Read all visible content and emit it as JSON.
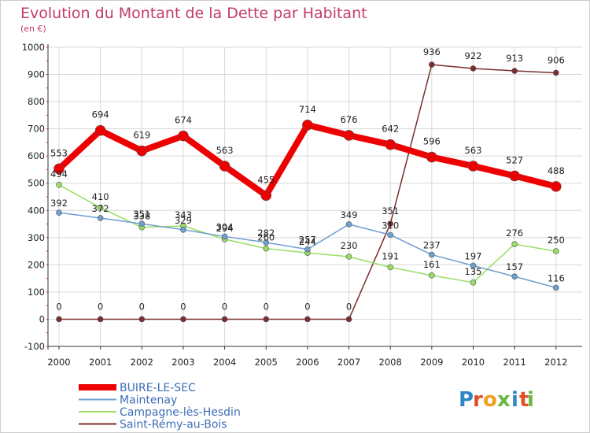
{
  "chart_data": {
    "type": "line",
    "title": "Evolution du Montant de la Dette par Habitant",
    "subtitle": "(en €)",
    "xlabel": "",
    "ylabel": "",
    "ylim": [
      -100,
      1000
    ],
    "yticks": [
      "-100",
      "0",
      "100",
      "200",
      "300",
      "400",
      "500",
      "600",
      "700",
      "800",
      "900",
      "1000"
    ],
    "categories": [
      "2000",
      "2001",
      "2002",
      "2003",
      "2004",
      "2005",
      "2006",
      "2007",
      "2008",
      "2009",
      "2010",
      "2011",
      "2012"
    ],
    "grid": true,
    "legend_position": "bottom-left",
    "series": [
      {
        "name": "Saint-Rémy-au-Bois",
        "color": "#7a2e2e",
        "values": [
          0,
          0,
          0,
          0,
          0,
          0,
          0,
          0,
          351,
          936,
          922,
          913,
          906
        ],
        "labels": [
          "0",
          "0",
          "0",
          "0",
          "0",
          "0",
          "0",
          "0",
          "351",
          "936",
          "922",
          "913",
          "906"
        ]
      },
      {
        "name": "Campagne-lès-Hesdin",
        "color": "#99dd66",
        "values": [
          494,
          410,
          338,
          343,
          294,
          260,
          244,
          230,
          191,
          161,
          135,
          276,
          250
        ],
        "labels": [
          "494",
          "410",
          "338",
          "343",
          "294",
          "260",
          "244",
          "230",
          "191",
          "161",
          "135",
          "276",
          "250"
        ]
      },
      {
        "name": "Maintenay",
        "color": "#6f9fd0",
        "values": [
          392,
          372,
          351,
          329,
          304,
          282,
          257,
          349,
          310,
          237,
          197,
          157,
          116
        ],
        "labels": [
          "392",
          "372",
          "351",
          "329",
          "304",
          "282",
          "257",
          "349",
          "310",
          "237",
          "197",
          "157",
          "116"
        ]
      },
      {
        "name": "BUIRE-LE-SEC",
        "color": "#ee0000",
        "values": [
          553,
          694,
          619,
          674,
          563,
          455,
          714,
          676,
          642,
          596,
          563,
          527,
          488
        ],
        "labels": [
          "553",
          "694",
          "619",
          "674",
          "563",
          "455",
          "714",
          "676",
          "642",
          "596",
          "563",
          "527",
          "488"
        ]
      }
    ],
    "legend_order": [
      "BUIRE-LE-SEC",
      "Maintenay",
      "Campagne-lès-Hesdin",
      "Saint-Rémy-au-Bois"
    ]
  },
  "logo": {
    "text": "Proxiti"
  },
  "colors": {
    "title": "#c23b6d",
    "legend_text": "#3d6db5",
    "grid": "#d8d8d8"
  }
}
